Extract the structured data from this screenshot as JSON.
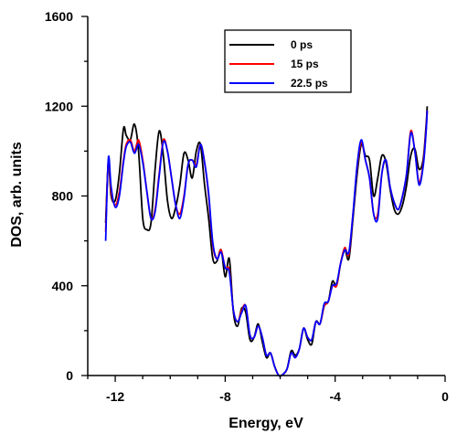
{
  "chart_data": {
    "type": "line",
    "title": "",
    "xlabel": "Energy, eV",
    "ylabel": "DOS, arb. units",
    "xlim": [
      -13,
      0
    ],
    "ylim": [
      0,
      1600
    ],
    "x_ticks": [
      -12,
      -8,
      -4,
      0
    ],
    "x_tick_labels": [
      "-12",
      "-8",
      "-4",
      "0"
    ],
    "y_ticks": [
      0,
      400,
      800,
      1200,
      1600
    ],
    "y_tick_labels": [
      "0",
      "400",
      "800",
      "1200",
      "1600"
    ],
    "grid": false,
    "legend_position": "top-right",
    "series": [
      {
        "name": "0 ps",
        "color": "#000000",
        "x": [
          -12.35,
          -12.25,
          -12.15,
          -12.0,
          -11.85,
          -11.7,
          -11.6,
          -11.45,
          -11.3,
          -11.15,
          -11.0,
          -10.85,
          -10.7,
          -10.55,
          -10.4,
          -10.25,
          -10.1,
          -9.95,
          -9.8,
          -9.65,
          -9.5,
          -9.35,
          -9.2,
          -9.05,
          -8.9,
          -8.75,
          -8.6,
          -8.45,
          -8.3,
          -8.15,
          -8.0,
          -7.85,
          -7.7,
          -7.55,
          -7.4,
          -7.25,
          -7.1,
          -6.95,
          -6.8,
          -6.65,
          -6.5,
          -6.35,
          -6.2,
          -6.05,
          -5.9,
          -5.75,
          -5.6,
          -5.45,
          -5.3,
          -5.15,
          -5.0,
          -4.85,
          -4.7,
          -4.55,
          -4.4,
          -4.25,
          -4.1,
          -3.95,
          -3.8,
          -3.65,
          -3.5,
          -3.35,
          -3.2,
          -3.05,
          -2.9,
          -2.75,
          -2.6,
          -2.45,
          -2.3,
          -2.15,
          -2.0,
          -1.85,
          -1.7,
          -1.55,
          -1.4,
          -1.25,
          -1.1,
          -0.95,
          -0.8,
          -0.7,
          -0.65
        ],
        "y": [
          680,
          950,
          800,
          780,
          900,
          1100,
          1070,
          1050,
          1120,
          1000,
          700,
          650,
          680,
          920,
          1090,
          980,
          780,
          700,
          750,
          850,
          990,
          960,
          880,
          1000,
          1030,
          850,
          700,
          520,
          510,
          560,
          440,
          520,
          280,
          220,
          300,
          280,
          160,
          170,
          230,
          150,
          80,
          100,
          40,
          0,
          5,
          30,
          110,
          90,
          120,
          210,
          160,
          140,
          240,
          230,
          310,
          330,
          420,
          400,
          500,
          560,
          520,
          700,
          900,
          1030,
          980,
          960,
          800,
          880,
          980,
          950,
          830,
          740,
          720,
          760,
          850,
          980,
          1010,
          920,
          960,
          1100,
          1200
        ]
      },
      {
        "name": "15 ps",
        "color": "#ff0000",
        "x": [
          -12.35,
          -12.25,
          -12.15,
          -12.0,
          -11.85,
          -11.7,
          -11.6,
          -11.45,
          -11.3,
          -11.15,
          -11.0,
          -10.85,
          -10.7,
          -10.55,
          -10.4,
          -10.25,
          -10.1,
          -9.95,
          -9.8,
          -9.65,
          -9.5,
          -9.35,
          -9.2,
          -9.05,
          -8.9,
          -8.75,
          -8.6,
          -8.45,
          -8.3,
          -8.15,
          -8.0,
          -7.85,
          -7.7,
          -7.55,
          -7.4,
          -7.25,
          -7.1,
          -6.95,
          -6.8,
          -6.65,
          -6.5,
          -6.35,
          -6.2,
          -6.05,
          -5.9,
          -5.75,
          -5.6,
          -5.45,
          -5.3,
          -5.15,
          -5.0,
          -4.85,
          -4.7,
          -4.55,
          -4.4,
          -4.25,
          -4.1,
          -3.95,
          -3.8,
          -3.65,
          -3.5,
          -3.35,
          -3.2,
          -3.05,
          -2.9,
          -2.75,
          -2.6,
          -2.45,
          -2.3,
          -2.15,
          -2.0,
          -1.85,
          -1.7,
          -1.55,
          -1.4,
          -1.25,
          -1.1,
          -0.95,
          -0.8,
          -0.7,
          -0.65
        ],
        "y": [
          640,
          960,
          820,
          760,
          820,
          960,
          1030,
          1050,
          1000,
          1050,
          960,
          820,
          700,
          740,
          900,
          1050,
          1000,
          880,
          760,
          720,
          800,
          940,
          960,
          940,
          1030,
          950,
          800,
          580,
          520,
          560,
          480,
          470,
          290,
          240,
          290,
          310,
          180,
          170,
          220,
          170,
          90,
          100,
          40,
          0,
          5,
          30,
          100,
          80,
          120,
          210,
          170,
          160,
          240,
          230,
          310,
          330,
          400,
          400,
          500,
          570,
          540,
          720,
          930,
          1040,
          960,
          880,
          720,
          720,
          900,
          960,
          840,
          770,
          740,
          800,
          900,
          1090,
          1000,
          860,
          940,
          1080,
          1180
        ]
      },
      {
        "name": "22.5 ps",
        "color": "#0000ff",
        "x": [
          -12.35,
          -12.25,
          -12.15,
          -12.0,
          -11.85,
          -11.7,
          -11.6,
          -11.45,
          -11.3,
          -11.15,
          -11.0,
          -10.85,
          -10.7,
          -10.55,
          -10.4,
          -10.25,
          -10.1,
          -9.95,
          -9.8,
          -9.65,
          -9.5,
          -9.35,
          -9.2,
          -9.05,
          -8.9,
          -8.75,
          -8.6,
          -8.45,
          -8.3,
          -8.15,
          -8.0,
          -7.85,
          -7.7,
          -7.55,
          -7.4,
          -7.25,
          -7.1,
          -6.95,
          -6.8,
          -6.65,
          -6.5,
          -6.35,
          -6.2,
          -6.05,
          -5.9,
          -5.75,
          -5.6,
          -5.45,
          -5.3,
          -5.15,
          -5.0,
          -4.85,
          -4.7,
          -4.55,
          -4.4,
          -4.25,
          -4.1,
          -3.95,
          -3.8,
          -3.65,
          -3.5,
          -3.35,
          -3.2,
          -3.05,
          -2.9,
          -2.75,
          -2.6,
          -2.45,
          -2.3,
          -2.15,
          -2.0,
          -1.85,
          -1.7,
          -1.55,
          -1.4,
          -1.25,
          -1.1,
          -0.95,
          -0.8,
          -0.7,
          -0.65
        ],
        "y": [
          600,
          970,
          840,
          750,
          800,
          950,
          1020,
          1040,
          990,
          1030,
          950,
          820,
          700,
          730,
          890,
          1040,
          1000,
          880,
          760,
          700,
          790,
          940,
          960,
          930,
          1030,
          950,
          810,
          590,
          520,
          550,
          480,
          460,
          290,
          240,
          280,
          310,
          180,
          170,
          220,
          170,
          90,
          100,
          40,
          0,
          5,
          30,
          100,
          80,
          120,
          210,
          170,
          160,
          240,
          230,
          320,
          330,
          400,
          410,
          500,
          560,
          550,
          720,
          940,
          1050,
          960,
          880,
          720,
          700,
          900,
          960,
          840,
          770,
          740,
          800,
          900,
          1080,
          1000,
          850,
          930,
          1070,
          1180
        ]
      }
    ]
  }
}
